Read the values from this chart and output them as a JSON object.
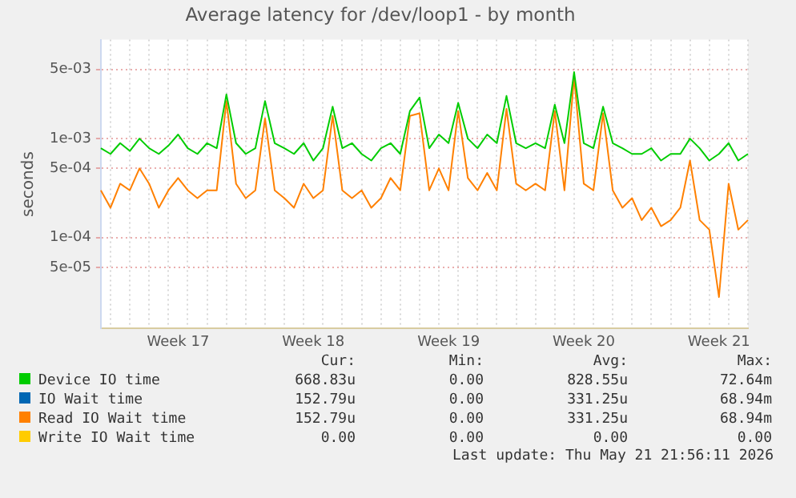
{
  "chart_data": {
    "type": "line",
    "title": "Average latency for /dev/loop1 - by month",
    "ylabel": "seconds",
    "log": "y",
    "grid": true,
    "legend": "bottom",
    "marker": "none",
    "line_style": "solid",
    "categories": [
      null,
      null,
      null,
      null,
      null,
      null,
      null,
      null,
      "Week 17",
      null,
      null,
      null,
      null,
      null,
      null,
      null,
      null,
      null,
      null,
      null,
      null,
      null,
      "Week 18",
      null,
      null,
      null,
      null,
      null,
      null,
      null,
      null,
      null,
      null,
      null,
      null,
      null,
      "Week 19",
      null,
      null,
      null,
      null,
      null,
      null,
      null,
      null,
      null,
      null,
      null,
      null,
      null,
      "Week 20",
      null,
      null,
      null,
      null,
      null,
      null,
      null,
      null,
      null,
      null,
      null,
      null,
      null,
      "Week 21",
      null,
      null,
      null
    ],
    "ylim": [
      1.2e-05,
      0.01
    ],
    "yticks": [
      {
        "value": 0.005,
        "label": "5e-03"
      },
      {
        "value": 0.001,
        "label": "1e-03"
      },
      {
        "value": 0.0005,
        "label": "5e-04"
      },
      {
        "value": 0.0001,
        "label": "1e-04"
      },
      {
        "value": 5e-05,
        "label": "5e-05"
      }
    ],
    "series": [
      {
        "name": "Device IO time",
        "color": "#00cc00",
        "values": [
          0.0008,
          0.0007,
          0.0009,
          0.00075,
          0.001,
          0.0008,
          0.0007,
          0.00085,
          0.0011,
          0.0008,
          0.0007,
          0.0009,
          0.0008,
          0.0028,
          0.0009,
          0.0007,
          0.0008,
          0.0024,
          0.0009,
          0.0008,
          0.0007,
          0.0009,
          0.0006,
          0.0008,
          0.0021,
          0.0008,
          0.0009,
          0.0007,
          0.0006,
          0.0008,
          0.0009,
          0.0007,
          0.0019,
          0.0026,
          0.0008,
          0.0011,
          0.0009,
          0.0023,
          0.001,
          0.0008,
          0.0011,
          0.0009,
          0.0027,
          0.0009,
          0.0008,
          0.0009,
          0.0008,
          0.0022,
          0.0009,
          0.0047,
          0.0009,
          0.0008,
          0.0021,
          0.0009,
          0.0008,
          0.0007,
          0.0007,
          0.0008,
          0.0006,
          0.0007,
          0.0007,
          0.001,
          0.0008,
          0.0006,
          0.0007,
          0.0009,
          0.0006,
          0.0007
        ]
      },
      {
        "name": "IO Wait time",
        "color": "#0066b3",
        "values": [
          null,
          null,
          null,
          null,
          null,
          null,
          null,
          null,
          null,
          null,
          null,
          null,
          null,
          null,
          null,
          null,
          null,
          null,
          null,
          null,
          null,
          null,
          null,
          null,
          null,
          null,
          null,
          null,
          null,
          null,
          null,
          null,
          null,
          null,
          null,
          null,
          null,
          null,
          null,
          null,
          null,
          null,
          null,
          null,
          null,
          null,
          null,
          null,
          null,
          null,
          null,
          null,
          null,
          null,
          null,
          null,
          null,
          null,
          null,
          null,
          null,
          null,
          null,
          null,
          null,
          null,
          null,
          null
        ]
      },
      {
        "name": "Read IO Wait time",
        "color": "#ff8000",
        "values": [
          0.0003,
          0.0002,
          0.00035,
          0.0003,
          0.0005,
          0.00035,
          0.0002,
          0.0003,
          0.0004,
          0.0003,
          0.00025,
          0.0003,
          0.0003,
          0.0024,
          0.00035,
          0.00025,
          0.0003,
          0.0016,
          0.0003,
          0.00025,
          0.0002,
          0.00035,
          0.00025,
          0.0003,
          0.0017,
          0.0003,
          0.00025,
          0.0003,
          0.0002,
          0.00025,
          0.0004,
          0.0003,
          0.0017,
          0.0018,
          0.0003,
          0.0005,
          0.0003,
          0.0019,
          0.0004,
          0.0003,
          0.00045,
          0.0003,
          0.002,
          0.00035,
          0.0003,
          0.00035,
          0.0003,
          0.0019,
          0.0003,
          0.0042,
          0.00035,
          0.0003,
          0.0018,
          0.0003,
          0.0002,
          0.00025,
          0.00015,
          0.0002,
          0.00013,
          0.00015,
          0.0002,
          0.0006,
          0.00015,
          0.00012,
          2.5e-05,
          0.00035,
          0.00012,
          0.00015
        ]
      },
      {
        "name": "Write IO Wait time",
        "color": "#ffcc00",
        "values": [
          null,
          null,
          null,
          null,
          null,
          null,
          null,
          null,
          null,
          null,
          null,
          null,
          null,
          null,
          null,
          null,
          null,
          null,
          null,
          null,
          null,
          null,
          null,
          null,
          null,
          null,
          null,
          null,
          null,
          null,
          null,
          null,
          null,
          null,
          null,
          null,
          null,
          null,
          null,
          null,
          null,
          null,
          null,
          null,
          null,
          null,
          null,
          null,
          null,
          null,
          null,
          null,
          null,
          null,
          null,
          null,
          null,
          null,
          null,
          null,
          null,
          null,
          null,
          null,
          null,
          null,
          null,
          null
        ]
      }
    ],
    "annotations": [
      "Cur:",
      "Min:",
      "Avg:",
      "Max:",
      "668.83u",
      "0.00",
      "828.55u",
      "72.64m",
      "152.79u",
      "0.00",
      "331.25u",
      "68.94m",
      "152.79u",
      "0.00",
      "331.25u",
      "68.94m",
      "0.00",
      "0.00",
      "0.00",
      "0.00",
      "Last update: Thu May 21 21:56:11 2026"
    ]
  }
}
